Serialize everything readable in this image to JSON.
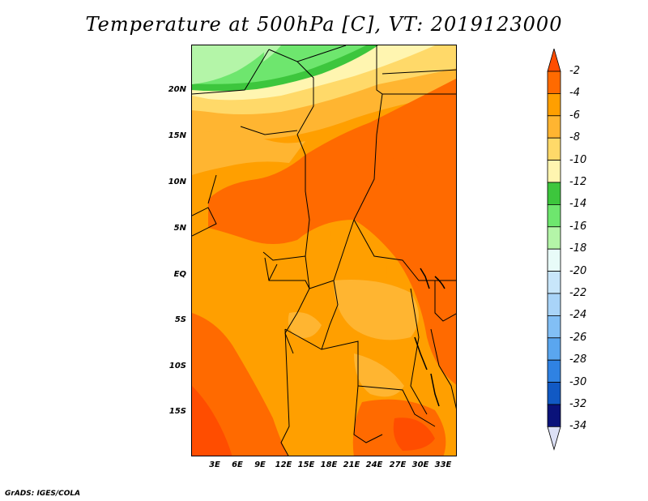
{
  "title": "Temperature at 500hPa [C], VT: 2019123000",
  "credit": "GrADS: IGES/COLA",
  "map": {
    "lat_ticks": [
      "20N",
      "15N",
      "10N",
      "5N",
      "EQ",
      "5S",
      "10S",
      "15S"
    ],
    "lon_ticks": [
      "3E",
      "6E",
      "9E",
      "12E",
      "15E",
      "18E",
      "21E",
      "24E",
      "27E",
      "30E",
      "33E"
    ]
  },
  "colorbar": {
    "labels": [
      "-2",
      "-4",
      "-6",
      "-8",
      "-10",
      "-12",
      "-14",
      "-16",
      "-18",
      "-20",
      "-22",
      "-24",
      "-26",
      "-28",
      "-30",
      "-32",
      "-34"
    ],
    "colors": [
      "#ff4d00",
      "#ff6a00",
      "#ff9f00",
      "#ffb531",
      "#ffd969",
      "#fff5b0",
      "#3dc63d",
      "#6ee66e",
      "#b4f5a8",
      "#e8fbf8",
      "#c8e6fa",
      "#a9d4f8",
      "#82bff5",
      "#5aa6ef",
      "#2f82e3",
      "#1159c4",
      "#0a127a",
      "#dce0f5"
    ]
  }
}
